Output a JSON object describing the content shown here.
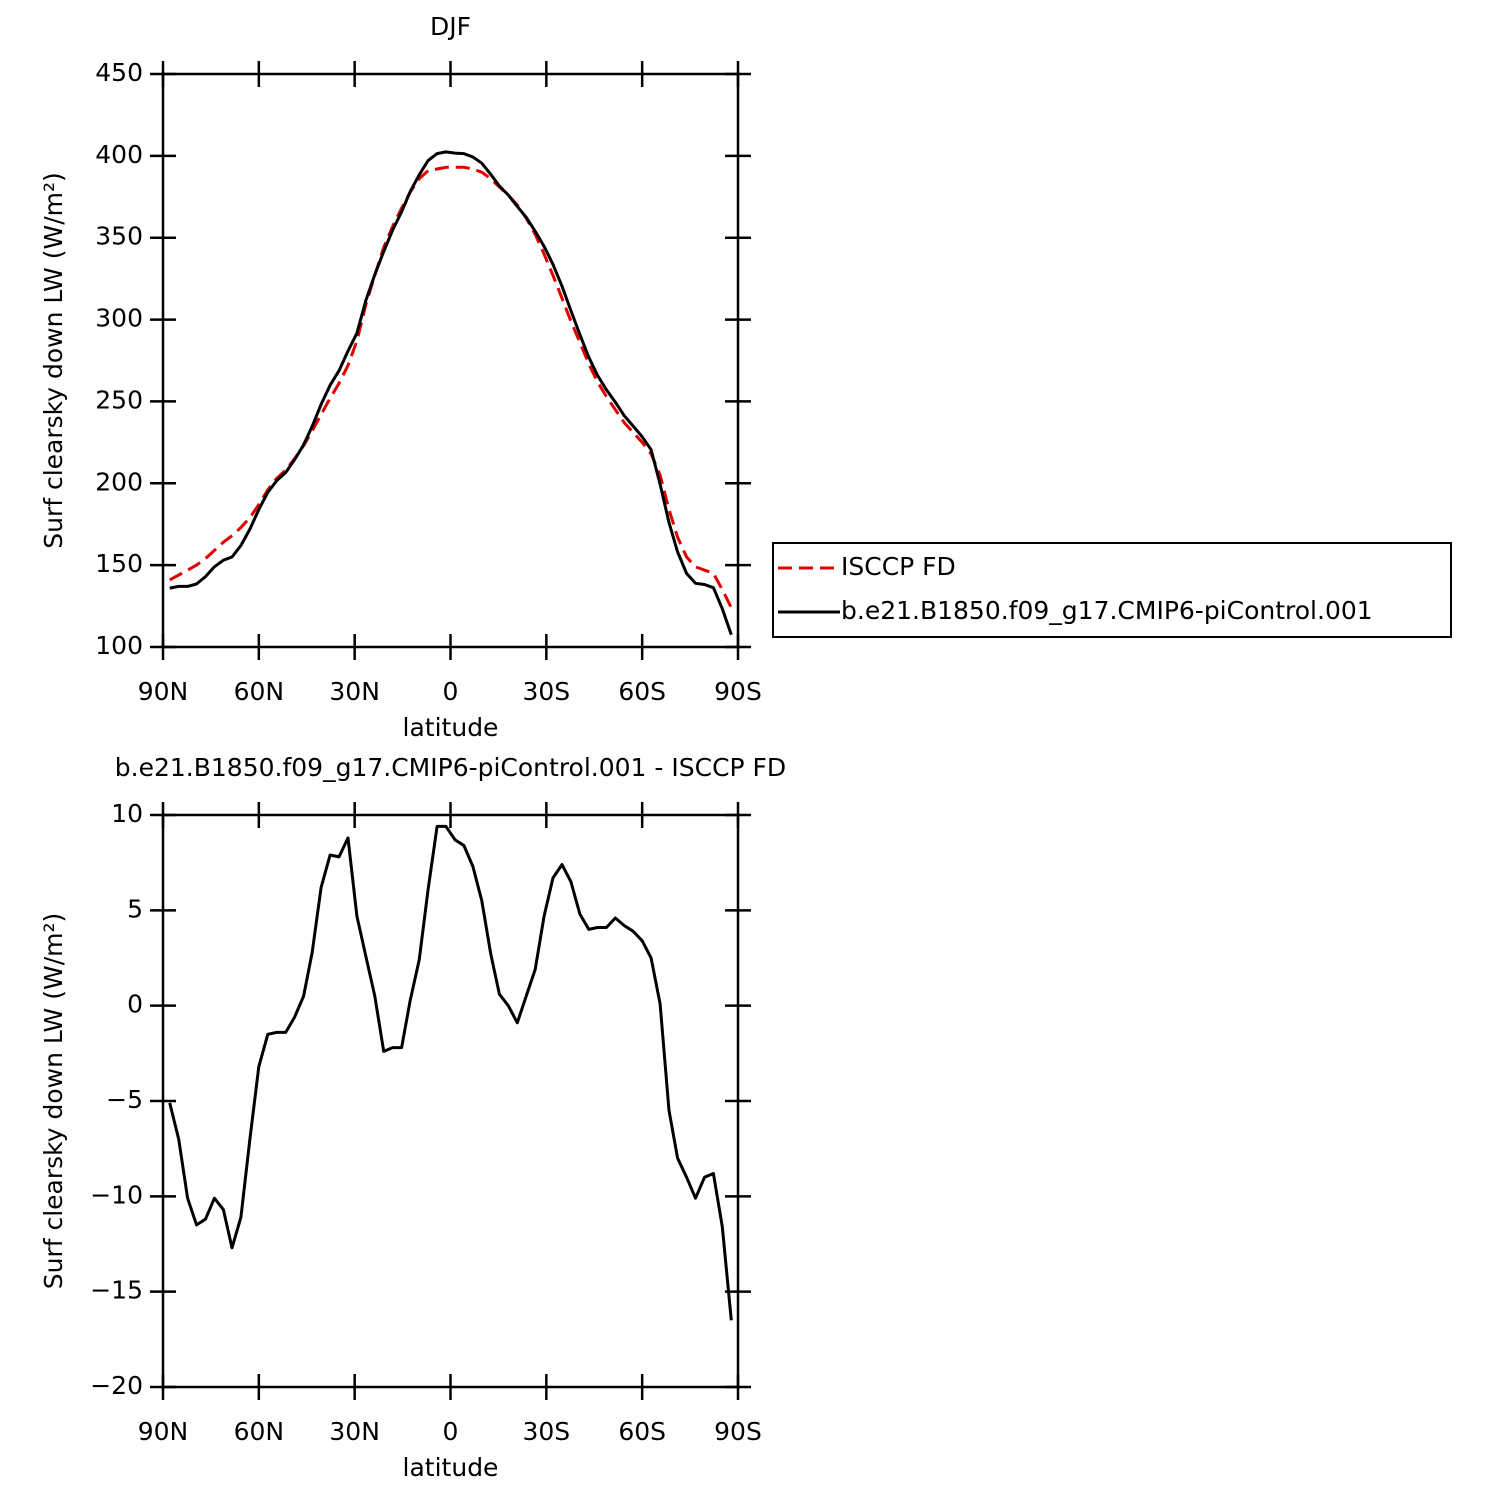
{
  "chart_data": [
    {
      "type": "line",
      "title": "DJF",
      "xlabel": "latitude",
      "ylabel": "Surf clearsky down LW (W/m²)",
      "x": [
        87.9,
        85.1,
        82.3,
        79.5,
        76.7,
        73.9,
        71.1,
        68.4,
        65.6,
        62.8,
        60.0,
        57.2,
        54.4,
        51.6,
        48.8,
        46.0,
        43.3,
        40.5,
        37.7,
        34.9,
        32.1,
        29.3,
        26.5,
        23.7,
        20.9,
        18.1,
        15.3,
        12.6,
        9.8,
        7.0,
        4.2,
        1.4,
        -1.4,
        -4.2,
        -7.0,
        -9.8,
        -12.6,
        -15.3,
        -18.1,
        -20.9,
        -23.7,
        -26.5,
        -29.3,
        -32.1,
        -34.9,
        -37.7,
        -40.5,
        -43.3,
        -46.0,
        -48.8,
        -51.6,
        -54.4,
        -57.2,
        -60.0,
        -62.8,
        -65.6,
        -68.4,
        -71.1,
        -73.9,
        -76.7,
        -79.5,
        -82.3,
        -85.1,
        -87.9
      ],
      "series": [
        {
          "name": "ISCCP FD",
          "color": "#e00000",
          "line_style": "dashed",
          "values": [
            141,
            144,
            147,
            150,
            154,
            159,
            164,
            168,
            173,
            179,
            187,
            196,
            203,
            208,
            215,
            223,
            232,
            242,
            252,
            261,
            272,
            287,
            309,
            327,
            344,
            357,
            368,
            378,
            386,
            391,
            392,
            393,
            393,
            393,
            392,
            390,
            386,
            381,
            376,
            370,
            362,
            352,
            340,
            327,
            313,
            299,
            286,
            273,
            262,
            253,
            245,
            237,
            231,
            225,
            218,
            205,
            184,
            167,
            155,
            149,
            147,
            145,
            135,
            124
          ]
        },
        {
          "name": "b.e21.B1850.f09_g17.CMIP6-piControl.001",
          "color": "#000000",
          "line_style": "solid",
          "values": [
            136,
            137,
            137,
            138.5,
            143,
            149,
            153,
            155,
            162,
            172,
            184,
            194.5,
            201.6,
            206.6,
            214.4,
            223.5,
            234.8,
            248.2,
            259.9,
            268.8,
            280.8,
            291.7,
            311.6,
            327.5,
            341.6,
            354.8,
            365.8,
            378.3,
            388.4,
            397.1,
            401.4,
            402.4,
            401.7,
            401.4,
            399.3,
            395.5,
            388.7,
            381.6,
            376,
            369.1,
            362.5,
            353.9,
            344.7,
            333.7,
            320.4,
            305.5,
            290.8,
            277,
            266.1,
            257.1,
            249.6,
            241.2,
            234.9,
            228.4,
            220.5,
            199.5,
            176,
            158,
            144.9,
            138.9,
            138.2,
            136.2,
            123.4,
            107.5
          ]
        }
      ],
      "xlim": [
        90,
        -90
      ],
      "xticks": [
        {
          "value": 90,
          "label": "90N"
        },
        {
          "value": 60,
          "label": "60N"
        },
        {
          "value": 30,
          "label": "30N"
        },
        0,
        {
          "value": -30,
          "label": "30S"
        },
        {
          "value": -60,
          "label": "60S"
        },
        {
          "value": -90,
          "label": "90S"
        }
      ],
      "ylim": [
        100,
        450
      ],
      "yticks": [
        100,
        150,
        200,
        250,
        300,
        350,
        400,
        450
      ],
      "legend": "right"
    },
    {
      "type": "line",
      "title": "b.e21.B1850.f09_g17.CMIP6-piControl.001 - ISCCP FD",
      "xlabel": "latitude",
      "ylabel": "Surf clearsky down LW (W/m²)",
      "x": [
        87.9,
        85.1,
        82.3,
        79.5,
        76.7,
        73.9,
        71.1,
        68.4,
        65.6,
        62.8,
        60.0,
        57.2,
        54.4,
        51.6,
        48.8,
        46.0,
        43.3,
        40.5,
        37.7,
        34.9,
        32.1,
        29.3,
        26.5,
        23.7,
        20.9,
        18.1,
        15.3,
        12.6,
        9.8,
        7.0,
        4.2,
        1.4,
        -1.4,
        -4.2,
        -7.0,
        -9.8,
        -12.6,
        -15.3,
        -18.1,
        -20.9,
        -23.7,
        -26.5,
        -29.3,
        -32.1,
        -34.9,
        -37.7,
        -40.5,
        -43.3,
        -46.0,
        -48.8,
        -51.6,
        -54.4,
        -57.2,
        -60.0,
        -62.8,
        -65.6,
        -68.4,
        -71.1,
        -73.9,
        -76.7,
        -79.5,
        -82.3,
        -85.1,
        -87.9
      ],
      "series": [
        {
          "color": "#000000",
          "line_style": "solid",
          "values": [
            -5.1,
            -7.0,
            -10.1,
            -11.5,
            -11.2,
            -10.1,
            -10.7,
            -12.7,
            -11.1,
            -7.0,
            -3.2,
            -1.5,
            -1.4,
            -1.4,
            -0.6,
            0.5,
            2.8,
            6.2,
            7.9,
            7.8,
            8.8,
            4.7,
            2.6,
            0.5,
            -2.4,
            -2.2,
            -2.2,
            0.3,
            2.4,
            6.1,
            9.4,
            9.4,
            8.7,
            8.4,
            7.3,
            5.5,
            2.7,
            0.6,
            0,
            -0.9,
            0.5,
            1.9,
            4.7,
            6.7,
            7.4,
            6.5,
            4.8,
            4.0,
            4.1,
            4.1,
            4.6,
            4.2,
            3.9,
            3.4,
            2.5,
            0.1,
            -5.5,
            -8.0,
            -9.0,
            -10.1,
            -9.0,
            -8.8,
            -11.6,
            -16.5
          ]
        }
      ],
      "xlim": [
        90,
        -90
      ],
      "xticks": [
        {
          "value": 90,
          "label": "90N"
        },
        {
          "value": 60,
          "label": "60N"
        },
        {
          "value": 30,
          "label": "30N"
        },
        0,
        {
          "value": -30,
          "label": "30S"
        },
        {
          "value": -60,
          "label": "60S"
        },
        {
          "value": -90,
          "label": "90S"
        }
      ],
      "ylim": [
        -20,
        10
      ],
      "yticks": [
        {
          "value": -20,
          "label": "−20"
        },
        {
          "value": -15,
          "label": "−15"
        },
        {
          "value": -10,
          "label": "−10"
        },
        {
          "value": -5,
          "label": "−5"
        },
        0,
        5,
        10
      ]
    }
  ]
}
